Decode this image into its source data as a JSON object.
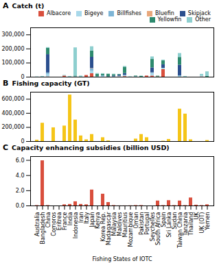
{
  "chart_data": [
    {
      "type": "bar",
      "title": "Catch (t)",
      "annotations": [
        "A"
      ],
      "stacked": true,
      "categories": [
        "Australia",
        "Bangladesh",
        "China",
        "Comoros",
        "Eritrea",
        "France",
        "India",
        "Indonesia",
        "Iran",
        "Italy",
        "Japan",
        "Kenya",
        "Korea Rep.",
        "Madagascar",
        "Malaysia",
        "Maldives",
        "Mauritius",
        "Mozambique",
        "Oman",
        "Pakistan",
        "Portugal",
        "Seychelles",
        "South Africa",
        "Spain",
        "Sri Lanka",
        "Sudan",
        "Taiwan China",
        "Tanzania",
        "Thailand",
        "UK",
        "UK (OT)",
        "Yemen"
      ],
      "series": [
        {
          "name": "Albacore",
          "color": "#d94f3d",
          "values": [
            0,
            0,
            2000,
            0,
            0,
            8000,
            0,
            0,
            0,
            12000,
            25000,
            0,
            0,
            0,
            0,
            2000,
            4000,
            0,
            0,
            0,
            8000,
            8000,
            2000,
            55000,
            0,
            0,
            0,
            0,
            0,
            0,
            2000,
            0
          ]
        },
        {
          "name": "Bigeye",
          "color": "#a8d8ea",
          "values": [
            0,
            0,
            18000,
            0,
            0,
            0,
            0,
            0,
            0,
            0,
            18000,
            0,
            5000,
            0,
            0,
            4000,
            5000,
            0,
            0,
            0,
            0,
            18000,
            0,
            8000,
            0,
            0,
            5000,
            0,
            0,
            0,
            5000,
            0
          ]
        },
        {
          "name": "Billfishes",
          "color": "#7eb5d6",
          "values": [
            0,
            0,
            10000,
            0,
            0,
            0,
            0,
            3000,
            0,
            0,
            15000,
            3000,
            5000,
            0,
            3000,
            0,
            5000,
            0,
            3000,
            0,
            0,
            5000,
            0,
            0,
            0,
            0,
            5000,
            0,
            0,
            0,
            0,
            0
          ]
        },
        {
          "name": "Bluefin",
          "color": "#e8a87c",
          "values": [
            0,
            0,
            0,
            0,
            0,
            0,
            0,
            0,
            0,
            0,
            3000,
            0,
            0,
            0,
            0,
            0,
            0,
            0,
            0,
            0,
            0,
            0,
            0,
            0,
            0,
            0,
            0,
            0,
            0,
            0,
            0,
            0
          ]
        },
        {
          "name": "Skipjack",
          "color": "#2b4f8e",
          "values": [
            0,
            0,
            130000,
            0,
            0,
            0,
            0,
            0,
            0,
            0,
            80000,
            0,
            0,
            3000,
            5000,
            8000,
            12000,
            0,
            0,
            0,
            0,
            35000,
            0,
            25000,
            0,
            0,
            75000,
            0,
            0,
            0,
            0,
            0
          ]
        },
        {
          "name": "Yellowfin",
          "color": "#2d8a6e",
          "values": [
            0,
            0,
            45000,
            0,
            0,
            0,
            0,
            5000,
            0,
            0,
            45000,
            18000,
            10000,
            18000,
            10000,
            5000,
            45000,
            0,
            5000,
            5000,
            0,
            60000,
            5000,
            28000,
            0,
            0,
            55000,
            0,
            0,
            0,
            0,
            5000
          ]
        },
        {
          "name": "Other",
          "color": "#8ecfcf",
          "values": [
            2000,
            5000,
            5000,
            0,
            0,
            5000,
            5000,
            200000,
            8000,
            0,
            30000,
            5000,
            5000,
            0,
            3000,
            0,
            5000,
            3000,
            0,
            3000,
            0,
            18000,
            0,
            5000,
            0,
            0,
            28000,
            5000,
            0,
            0,
            13000,
            33000
          ]
        }
      ],
      "ylim": [
        0,
        350000
      ],
      "yticks": [
        0,
        {
          "value": 100000,
          "label": "100,000"
        },
        {
          "value": 200000,
          "label": "200,000"
        },
        {
          "value": 300000,
          "label": "300,000"
        }
      ],
      "legend": "upper right",
      "tick_labels": "y",
      "grid": false
    },
    {
      "type": "bar",
      "title": "Fishing capacity (GT)",
      "annotations": [
        "B"
      ],
      "categories": [
        "Australia",
        "Bangladesh",
        "China",
        "Comoros",
        "Eritrea",
        "France",
        "India",
        "Indonesia",
        "Iran",
        "Italy",
        "Japan",
        "Kenya",
        "Korea Rep.",
        "Madagascar",
        "Malaysia",
        "Maldives",
        "Mauritius",
        "Mozambique",
        "Oman",
        "Pakistan",
        "Portugal",
        "Seychelles",
        "South Africa",
        "Spain",
        "Sri Lanka",
        "Sudan",
        "Taiwan China",
        "Tanzania",
        "Thailand",
        "UK",
        "UK (OT)",
        "Yemen"
      ],
      "values": [
        20000,
        260000,
        0,
        195000,
        0,
        220000,
        660000,
        305000,
        80000,
        25000,
        100000,
        0,
        55000,
        10000,
        0,
        0,
        0,
        0,
        35000,
        100000,
        55000,
        0,
        0,
        5000,
        30000,
        0,
        460000,
        390000,
        25000,
        0,
        0,
        15000
      ],
      "color": "#f5c518",
      "ylim": [
        0,
        700000
      ],
      "yticks": [
        0,
        {
          "value": 200000,
          "label": "200,000"
        },
        {
          "value": 400000,
          "label": "400,000"
        },
        {
          "value": 600000,
          "label": "600,000"
        }
      ],
      "tick_labels": "y",
      "grid": false
    },
    {
      "type": "bar",
      "title": "Capacity enhancing subsidies (billion USD)",
      "annotations": [
        "C"
      ],
      "xlabel": "Fishing States of IOTC",
      "categories": [
        "Australia",
        "Bangladesh",
        "China",
        "Comoros",
        "Eritrea",
        "France",
        "India",
        "Indonesia",
        "Iran",
        "Italy",
        "Japan",
        "Kenya",
        "Korea Rep.",
        "Madagascar",
        "Malaysia",
        "Maldives",
        "Mauritius",
        "Mozambique",
        "Oman",
        "Pakistan",
        "Portugal",
        "Seychelles",
        "South Africa",
        "Spain",
        "Sri Lanka",
        "Sudan",
        "Taiwan China",
        "Tanzania",
        "Thailand",
        "UK",
        "UK (OT)",
        "Yemen"
      ],
      "values": [
        0.05,
        5.95,
        0.05,
        0,
        0,
        0.15,
        0.2,
        0.55,
        0.2,
        0.15,
        2.1,
        0,
        1.55,
        0.45,
        0.05,
        0.01,
        0.01,
        0.02,
        0.05,
        0.05,
        0,
        0,
        0.65,
        0.05,
        0.7,
        0.05,
        0.65,
        0.05,
        1.05,
        0.1,
        0.05,
        0.15
      ],
      "color": "#d94f3d",
      "ylim": [
        0,
        6.5
      ],
      "yticks": [
        {
          "value": 0,
          "label": "0.0"
        },
        {
          "value": 2,
          "label": "2.0"
        },
        {
          "value": 4,
          "label": "4.0"
        },
        {
          "value": 6,
          "label": "6.0"
        }
      ],
      "grid": false
    }
  ]
}
